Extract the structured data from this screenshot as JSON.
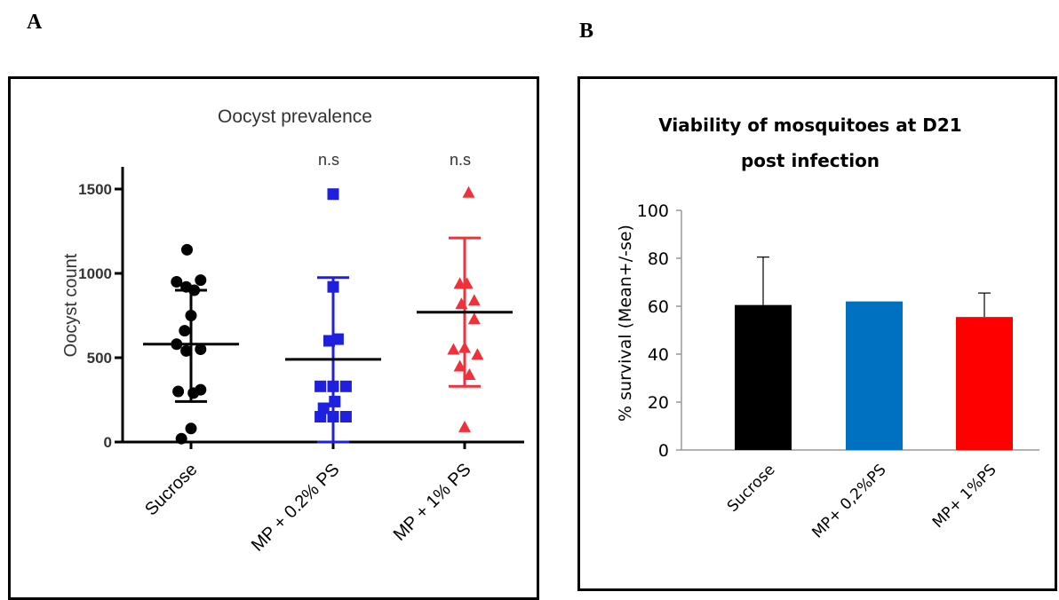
{
  "panels": {
    "a_letter": "A",
    "b_letter": "B"
  },
  "chart_data": [
    {
      "type": "scatter",
      "title": "Oocyst prevalence",
      "xlabel": "",
      "ylabel": "Oocyst count",
      "ylim": [
        0,
        1600
      ],
      "yticks": [
        0,
        500,
        1000,
        1500
      ],
      "categories": [
        "Sucrose",
        "MP + 0.2% PS",
        "MP + 1% PS"
      ],
      "annotations": [
        "",
        "n.s",
        "n.s"
      ],
      "series": [
        {
          "color": "#000000",
          "marker": "circle",
          "points": [
            [
              -0.05,
              1140
            ],
            [
              -0.18,
              950
            ],
            [
              0.12,
              960
            ],
            [
              -0.06,
              920
            ],
            [
              0.04,
              900
            ],
            [
              0.0,
              750
            ],
            [
              -0.08,
              660
            ],
            [
              -0.18,
              580
            ],
            [
              0.12,
              550
            ],
            [
              -0.06,
              540
            ],
            [
              -0.16,
              300
            ],
            [
              0.03,
              290
            ],
            [
              0.12,
              310
            ],
            [
              0.0,
              80
            ],
            [
              -0.12,
              20
            ]
          ],
          "mean": 580,
          "sd_upper": 900,
          "sd_lower": 240
        },
        {
          "color": "#1f1fe0",
          "marker": "square",
          "points": [
            [
              0.0,
              1470
            ],
            [
              0.0,
              920
            ],
            [
              -0.05,
              600
            ],
            [
              0.06,
              610
            ],
            [
              -0.16,
              330
            ],
            [
              0.0,
              330
            ],
            [
              0.16,
              330
            ],
            [
              -0.12,
              200
            ],
            [
              0.02,
              240
            ],
            [
              -0.16,
              150
            ],
            [
              0.0,
              150
            ],
            [
              0.16,
              150
            ]
          ],
          "mean": 490,
          "sd_upper": 975,
          "sd_lower": 0
        },
        {
          "color": "#f0303a",
          "marker": "triangle",
          "points": [
            [
              0.05,
              1480
            ],
            [
              -0.06,
              940
            ],
            [
              0.03,
              940
            ],
            [
              0.12,
              840
            ],
            [
              -0.04,
              820
            ],
            [
              0.12,
              730
            ],
            [
              -0.14,
              550
            ],
            [
              0.0,
              560
            ],
            [
              0.16,
              520
            ],
            [
              -0.06,
              450
            ],
            [
              0.06,
              400
            ],
            [
              0.0,
              90
            ]
          ],
          "mean": 770,
          "sd_upper": 1210,
          "sd_lower": 330
        }
      ]
    },
    {
      "type": "bar",
      "title": "Viability of mosquitoes at D21",
      "title_line2": "post infection",
      "xlabel": "",
      "ylabel": "% survival (Mean+/-se)",
      "ylim": [
        0,
        100
      ],
      "yticks": [
        0,
        20,
        40,
        60,
        80,
        100
      ],
      "categories": [
        "Sucrose",
        "MP+ 0,2%PS",
        "MP+ 1%PS"
      ],
      "values": [
        60.5,
        62,
        55.5
      ],
      "error_upper": [
        20,
        0,
        10
      ],
      "colors": [
        "#000000",
        "#0070c0",
        "#ff0000"
      ]
    }
  ]
}
